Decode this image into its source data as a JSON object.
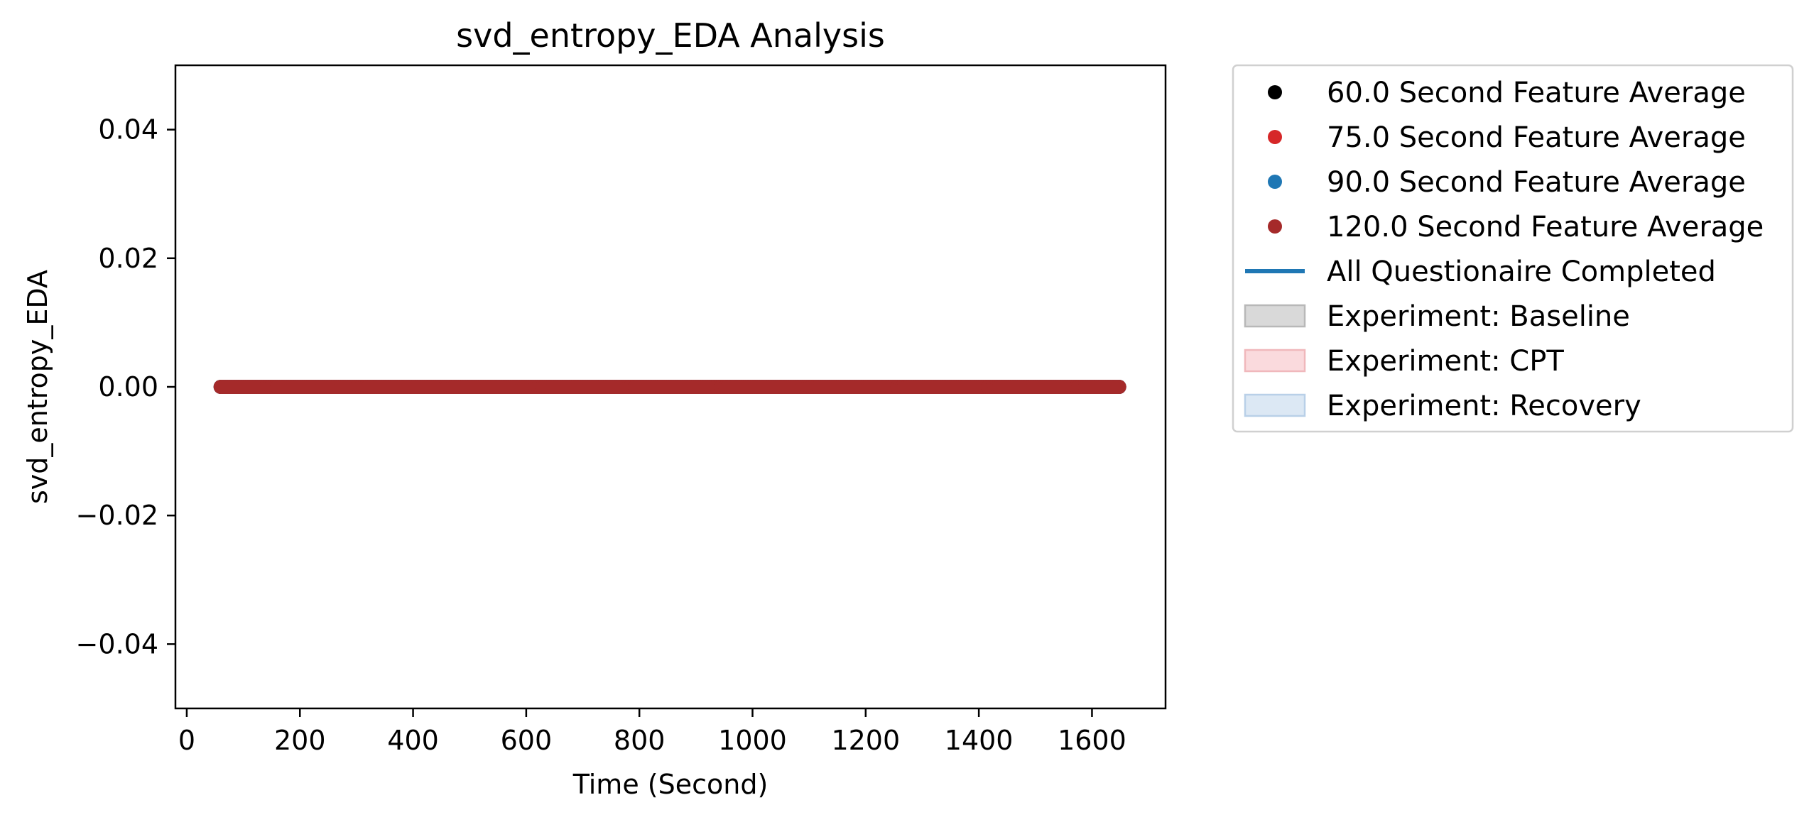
{
  "chart_data": {
    "type": "scatter",
    "title": "svd_entropy_EDA Analysis",
    "xlabel": "Time (Second)",
    "ylabel": "svd_entropy_EDA",
    "xlim": [
      -20,
      1730
    ],
    "ylim": [
      -0.05,
      0.05
    ],
    "xticks": [
      0,
      200,
      400,
      600,
      800,
      1000,
      1200,
      1400,
      1600
    ],
    "xtick_labels": [
      "0",
      "200",
      "400",
      "600",
      "800",
      "1000",
      "1200",
      "1400",
      "1600"
    ],
    "yticks": [
      0.04,
      0.02,
      0.0,
      -0.02,
      -0.04
    ],
    "ytick_labels": [
      "0.04",
      "0.02",
      "0.00",
      "−0.02",
      "−0.04"
    ],
    "grid": false,
    "legend_position": "outside-right",
    "series": [
      {
        "name": "60.0 Second Feature Average",
        "marker": "dot",
        "color": "#000000",
        "x_start": 60,
        "x_end": 1650,
        "step": 4,
        "value": 0.0
      },
      {
        "name": "75.0 Second Feature Average",
        "marker": "dot",
        "color": "#d62728",
        "x_start": 60,
        "x_end": 1650,
        "step": 4,
        "value": 0.0
      },
      {
        "name": "90.0 Second Feature Average",
        "marker": "dot",
        "color": "#1f77b4",
        "x_start": 60,
        "x_end": 1650,
        "step": 4,
        "value": 0.0
      },
      {
        "name": "120.0 Second Feature Average",
        "marker": "dot",
        "color": "#a52a2a",
        "x_start": 60,
        "x_end": 1650,
        "step": 4,
        "value": 0.0
      }
    ],
    "legend_extra": [
      {
        "name": "All Questionaire Completed",
        "kind": "line",
        "color": "#1f77b4"
      },
      {
        "name": "Experiment: Baseline",
        "kind": "patch",
        "color": "#d9d9d9",
        "edge": "#b8b8b8"
      },
      {
        "name": "Experiment: CPT",
        "kind": "patch",
        "color": "#fadadd",
        "edge": "#f0b8bc"
      },
      {
        "name": "Experiment: Recovery",
        "kind": "patch",
        "color": "#dce8f4",
        "edge": "#b9d0e8"
      }
    ]
  }
}
